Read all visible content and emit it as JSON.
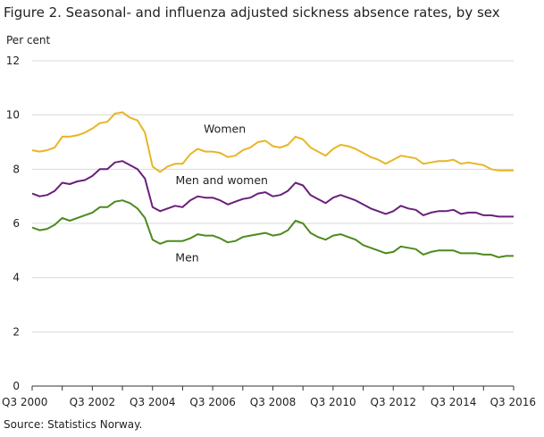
{
  "chart_data": {
    "type": "line",
    "title": "Figure 2. Seasonal- and influenza adjusted sickness absence rates, by sex",
    "ylabel": "Per cent",
    "source": "Source: Statistics Norway.",
    "ylim": [
      0,
      12
    ],
    "yticks": [
      0,
      2,
      4,
      6,
      8,
      10,
      12
    ],
    "x_start": "2000Q3",
    "x_end": "2016Q3",
    "x_tick_labels": [
      "Q3 2000",
      "Q3 2002",
      "Q3 2004",
      "Q3 2006",
      "Q3 2008",
      "Q3 2010",
      "Q3 2012",
      "Q3 2014",
      "Q3 2016"
    ],
    "x": [
      "2000Q3",
      "2000Q4",
      "2001Q1",
      "2001Q2",
      "2001Q3",
      "2001Q4",
      "2002Q1",
      "2002Q2",
      "2002Q3",
      "2002Q4",
      "2003Q1",
      "2003Q2",
      "2003Q3",
      "2003Q4",
      "2004Q1",
      "2004Q2",
      "2004Q3",
      "2004Q4",
      "2005Q1",
      "2005Q2",
      "2005Q3",
      "2005Q4",
      "2006Q1",
      "2006Q2",
      "2006Q3",
      "2006Q4",
      "2007Q1",
      "2007Q2",
      "2007Q3",
      "2007Q4",
      "2008Q1",
      "2008Q2",
      "2008Q3",
      "2008Q4",
      "2009Q1",
      "2009Q2",
      "2009Q3",
      "2009Q4",
      "2010Q1",
      "2010Q2",
      "2010Q3",
      "2010Q4",
      "2011Q1",
      "2011Q2",
      "2011Q3",
      "2011Q4",
      "2012Q1",
      "2012Q2",
      "2012Q3",
      "2012Q4",
      "2013Q1",
      "2013Q2",
      "2013Q3",
      "2013Q4",
      "2014Q1",
      "2014Q2",
      "2014Q3",
      "2014Q4",
      "2015Q1",
      "2015Q2",
      "2015Q3",
      "2015Q4",
      "2016Q1",
      "2016Q2",
      "2016Q3"
    ],
    "grid": true,
    "series": [
      {
        "name": "Women",
        "color": "#e8b526",
        "label_pos": [
          2006.9,
          9.35
        ],
        "values": [
          8.7,
          8.65,
          8.7,
          8.8,
          9.2,
          9.2,
          9.25,
          9.35,
          9.5,
          9.7,
          9.75,
          10.05,
          10.1,
          9.9,
          9.8,
          9.35,
          8.1,
          7.9,
          8.1,
          8.2,
          8.2,
          8.55,
          8.75,
          8.65,
          8.65,
          8.6,
          8.45,
          8.5,
          8.7,
          8.8,
          9.0,
          9.05,
          8.85,
          8.8,
          8.9,
          9.2,
          9.1,
          8.8,
          8.65,
          8.5,
          8.75,
          8.9,
          8.85,
          8.75,
          8.6,
          8.45,
          8.35,
          8.2,
          8.35,
          8.5,
          8.45,
          8.4,
          8.2,
          8.25,
          8.3,
          8.3,
          8.35,
          8.2,
          8.25,
          8.2,
          8.15,
          8.0,
          7.95,
          7.95,
          7.95
        ]
      },
      {
        "name": "Men and women",
        "color": "#6a1f7a",
        "label_pos": [
          2006.8,
          7.45
        ],
        "values": [
          7.1,
          7.0,
          7.05,
          7.2,
          7.5,
          7.45,
          7.55,
          7.6,
          7.75,
          8.0,
          8.0,
          8.25,
          8.3,
          8.15,
          8.0,
          7.65,
          6.6,
          6.45,
          6.55,
          6.65,
          6.6,
          6.85,
          7.0,
          6.95,
          6.95,
          6.85,
          6.7,
          6.8,
          6.9,
          6.95,
          7.1,
          7.15,
          7.0,
          7.05,
          7.2,
          7.5,
          7.4,
          7.05,
          6.9,
          6.75,
          6.95,
          7.05,
          6.95,
          6.85,
          6.7,
          6.55,
          6.45,
          6.35,
          6.45,
          6.65,
          6.55,
          6.5,
          6.3,
          6.4,
          6.45,
          6.45,
          6.5,
          6.35,
          6.4,
          6.4,
          6.3,
          6.3,
          6.25,
          6.25,
          6.25
        ]
      },
      {
        "name": "Men",
        "color": "#4c8a1e",
        "label_pos": [
          2005.65,
          4.6
        ],
        "values": [
          5.85,
          5.75,
          5.8,
          5.95,
          6.2,
          6.1,
          6.2,
          6.3,
          6.4,
          6.6,
          6.6,
          6.8,
          6.85,
          6.75,
          6.55,
          6.2,
          5.4,
          5.25,
          5.35,
          5.35,
          5.35,
          5.45,
          5.6,
          5.55,
          5.55,
          5.45,
          5.3,
          5.35,
          5.5,
          5.55,
          5.6,
          5.65,
          5.55,
          5.6,
          5.75,
          6.1,
          6.0,
          5.65,
          5.5,
          5.4,
          5.55,
          5.6,
          5.5,
          5.4,
          5.2,
          5.1,
          5.0,
          4.9,
          4.95,
          5.15,
          5.1,
          5.05,
          4.85,
          4.95,
          5.0,
          5.0,
          5.0,
          4.9,
          4.9,
          4.9,
          4.85,
          4.85,
          4.75,
          4.8,
          4.8
        ]
      }
    ]
  }
}
